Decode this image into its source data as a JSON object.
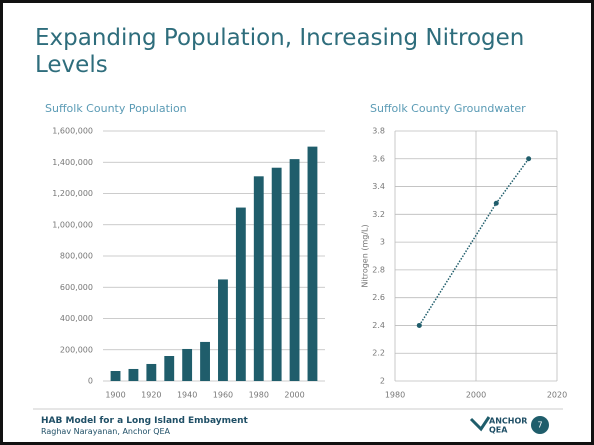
{
  "slide": {
    "title": "Expanding Population, Increasing Nitrogen Levels",
    "footer": {
      "line1": "HAB Model for a Long Island Embayment",
      "line2": "Raghav Narayanan, Anchor QEA",
      "logo_top": "ANCHOR",
      "logo_bottom": "QEA",
      "page": 7
    }
  },
  "chart_data": [
    {
      "type": "bar",
      "title": "Suffolk County Population",
      "x": [
        1900,
        1910,
        1920,
        1930,
        1940,
        1950,
        1960,
        1970,
        1980,
        1990,
        2000,
        2010
      ],
      "values": [
        64000,
        77000,
        109000,
        160000,
        205000,
        250000,
        650000,
        1110000,
        1310000,
        1365000,
        1420000,
        1500000
      ],
      "color": "#1f5d6b",
      "xlim": [
        1893,
        2017
      ],
      "xticks": [
        1900,
        1920,
        1940,
        1960,
        1980,
        2000
      ],
      "ylim": [
        0,
        1600000
      ],
      "yticks": [
        0,
        {
          "value": 200000,
          "label": "200,000"
        },
        {
          "value": 400000,
          "label": "400,000"
        },
        {
          "value": 600000,
          "label": "600,000"
        },
        {
          "value": 800000,
          "label": "800,000"
        },
        {
          "value": 1000000,
          "label": "1,000,000"
        },
        {
          "value": 1200000,
          "label": "1,200,000"
        },
        {
          "value": 1400000,
          "label": "1,400,000"
        },
        {
          "value": 1600000,
          "label": "1,600,000"
        }
      ],
      "grid": true
    },
    {
      "type": "line",
      "title": "Suffolk County Groundwater",
      "y_label": "Nitrogen (mg/L)",
      "x": [
        1986,
        2005,
        2013
      ],
      "values": [
        2.4,
        3.28,
        3.6
      ],
      "color": "#1f5d6b",
      "xlim": [
        1980,
        2020
      ],
      "xticks": [
        1980,
        2000,
        2020
      ],
      "ylim": [
        2,
        3.8
      ],
      "yticks": [
        2,
        2.2,
        2.4,
        2.6,
        2.8,
        3,
        3.2,
        3.4,
        3.6,
        3.8
      ],
      "grid": true
    }
  ]
}
